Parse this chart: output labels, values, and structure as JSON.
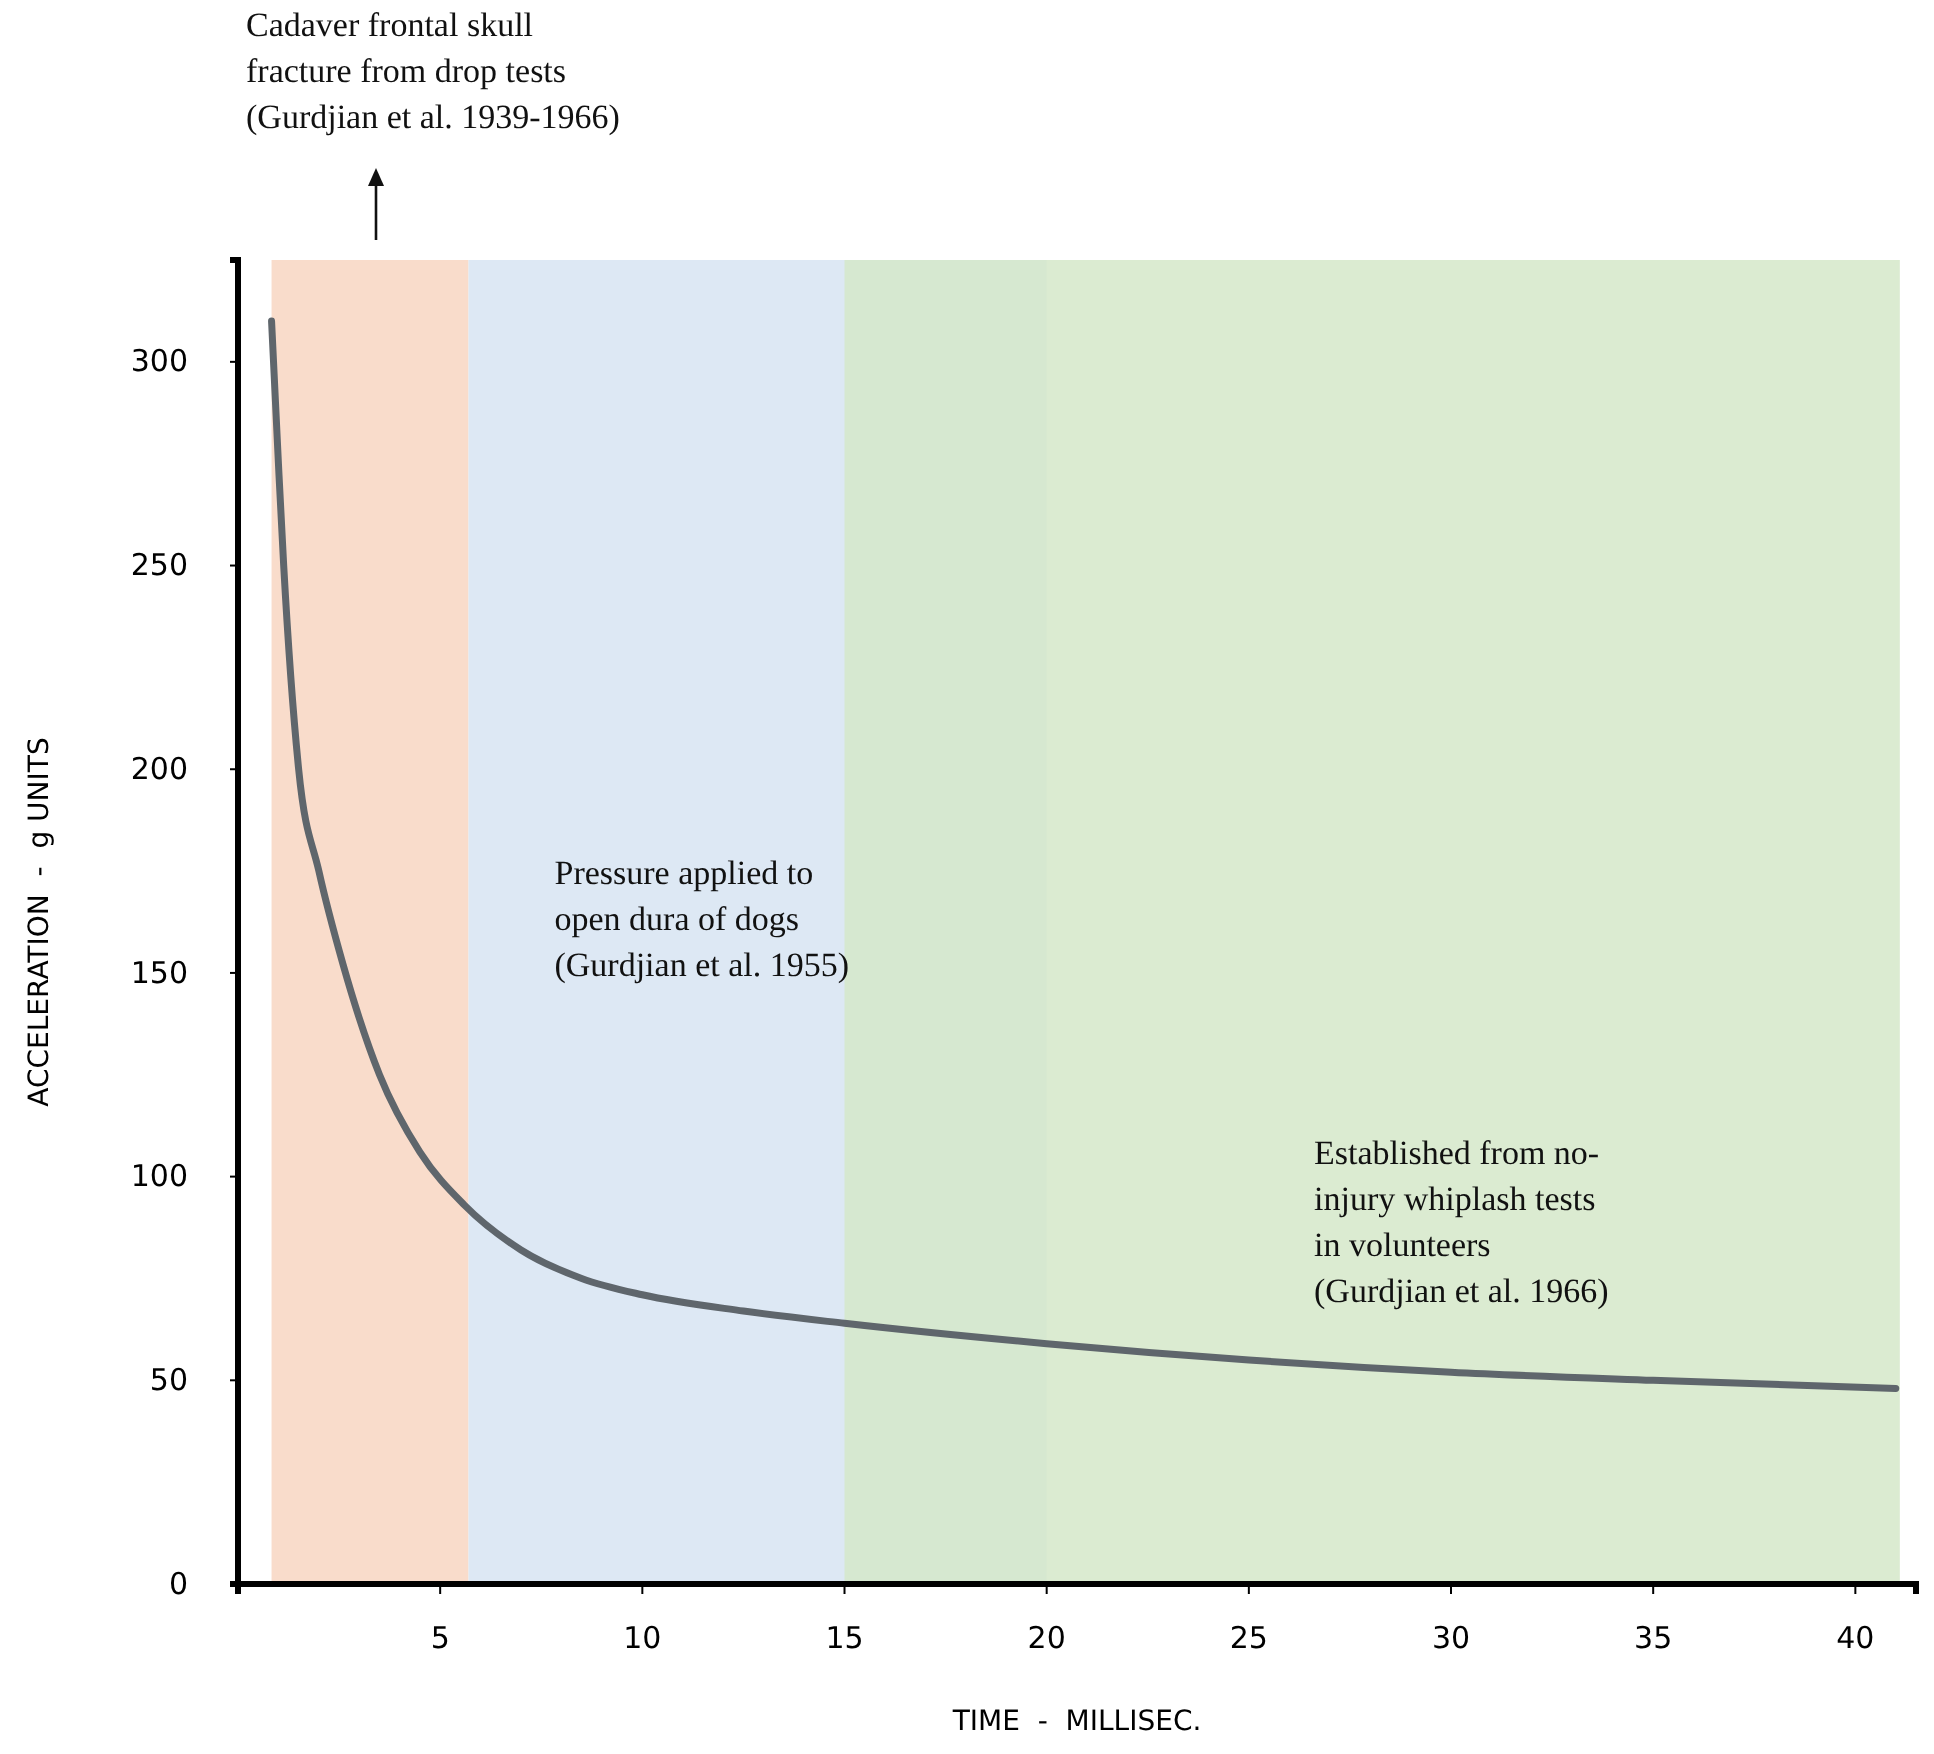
{
  "chart_data": {
    "type": "line",
    "xlabel": "TIME  -  MILLISEC.",
    "ylabel": "ACCELERATION  -  g UNITS",
    "x": [
      0.83,
      1.0,
      1.13,
      1.5,
      2.0,
      2.6,
      3.5,
      4.5,
      5.6,
      7,
      8.5,
      10,
      12.5,
      15,
      20,
      25,
      30,
      35,
      41
    ],
    "series": [
      {
        "color": "#5f666c",
        "values": [
          310,
          275,
          250,
          200,
          175,
          152,
          125,
          106,
          93,
          82,
          75,
          71,
          67,
          64,
          59,
          55,
          52,
          50,
          48
        ]
      }
    ],
    "annotations": [
      "Cadaver frontal skull\nfracture from drop tests\n(Gurdjian et al. 1939-1966)"
    ],
    "xlim": [
      0,
      41.5
    ],
    "ylim": [
      0,
      325
    ],
    "xticks": [
      5,
      10,
      15,
      20,
      25,
      30,
      35,
      40
    ],
    "yticks": [
      0,
      50,
      100,
      150,
      200,
      250,
      300
    ],
    "bands": [
      {
        "axis": "x",
        "from": 0.83,
        "to": 5.7,
        "color": "#f9dccb"
      },
      {
        "axis": "x",
        "from": 5.7,
        "to": 20,
        "color": "#d7e4f2",
        "label": "Pressure applied to\nopen dura of dogs\n(Gurdjian et al. 1955)"
      },
      {
        "axis": "x",
        "from": 15,
        "to": 41.1,
        "color": "#d5e8c9",
        "label": "Established from no-\ninjury whiplash tests\nin volunteers\n(Gurdjian et al. 1966)"
      }
    ],
    "grid": false,
    "marker": "none",
    "line_style": "solid"
  }
}
